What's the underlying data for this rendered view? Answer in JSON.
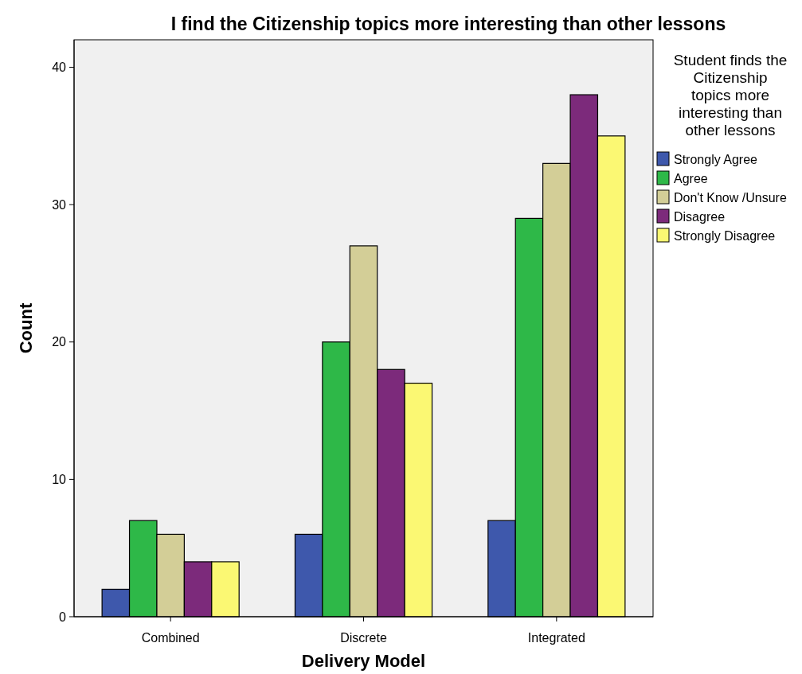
{
  "chart_data": {
    "type": "bar",
    "title": "I find the Citizenship topics more interesting than other lessons",
    "xlabel": "Delivery Model",
    "ylabel": "Count",
    "legend_title": "Student finds the Citizenship topics more interesting than other lessons",
    "categories": [
      "Combined",
      "Discrete",
      "Integrated"
    ],
    "series": [
      {
        "name": "Strongly Agree",
        "color": "#3e58ac",
        "values": [
          2,
          6,
          7
        ]
      },
      {
        "name": "Agree",
        "color": "#2eb848",
        "values": [
          7,
          20,
          29
        ]
      },
      {
        "name": "Don't Know /Unsure",
        "color": "#d3ce97",
        "values": [
          6,
          27,
          33
        ]
      },
      {
        "name": "Disagree",
        "color": "#7c2a7b",
        "values": [
          4,
          18,
          38
        ]
      },
      {
        "name": "Strongly Disagree",
        "color": "#fbf873",
        "values": [
          4,
          17,
          35
        ]
      }
    ],
    "ylim": [
      0,
      42
    ],
    "yticks": [
      0,
      10,
      20,
      30,
      40
    ],
    "grid": false,
    "legend": "right"
  }
}
